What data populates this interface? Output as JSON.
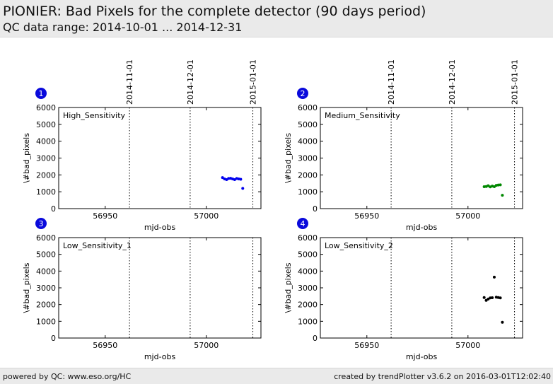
{
  "header": {
    "title": "PIONIER: Bad Pixels for the complete detector (90 days period)",
    "subtitle": "QC data range: 2014-10-01 ... 2014-12-31"
  },
  "footer": {
    "left": "powered by QC: www.eso.org/HC",
    "right": "created by trendPlotter v3.6.2 on 2016-03-01T12:02:40"
  },
  "chart_data": [
    {
      "type": "scatter",
      "badge": "1",
      "label": "High_Sensitivity",
      "xlabel": "mjd-obs",
      "ylabel": "\\#bad_pixels",
      "xlim": [
        56927,
        57027
      ],
      "ylim": [
        0,
        6000
      ],
      "xticks": [
        56950,
        57000
      ],
      "yticks": [
        0,
        1000,
        2000,
        3000,
        4000,
        5000,
        6000
      ],
      "date_markers": [
        {
          "x": 56962,
          "label": "2014-11-01"
        },
        {
          "x": 56992,
          "label": "2014-12-01"
        },
        {
          "x": 57023,
          "label": "2015-01-01"
        }
      ],
      "color": "#0000ee",
      "points": [
        {
          "x": 57008,
          "y": 1840
        },
        {
          "x": 57009,
          "y": 1760
        },
        {
          "x": 57010,
          "y": 1720
        },
        {
          "x": 57011,
          "y": 1790
        },
        {
          "x": 57012,
          "y": 1800
        },
        {
          "x": 57013,
          "y": 1760
        },
        {
          "x": 57014,
          "y": 1720
        },
        {
          "x": 57015,
          "y": 1790
        },
        {
          "x": 57016,
          "y": 1760
        },
        {
          "x": 57017,
          "y": 1740
        },
        {
          "x": 57018,
          "y": 1200
        }
      ]
    },
    {
      "type": "scatter",
      "badge": "2",
      "label": "Medium_Sensitivity",
      "xlabel": "mjd-obs",
      "ylabel": "\\#bad_pixels",
      "xlim": [
        56927,
        57027
      ],
      "ylim": [
        0,
        6000
      ],
      "xticks": [
        56950,
        57000
      ],
      "yticks": [
        0,
        1000,
        2000,
        3000,
        4000,
        5000,
        6000
      ],
      "date_markers": [
        {
          "x": 56962,
          "label": "2014-11-01"
        },
        {
          "x": 56992,
          "label": "2014-12-01"
        },
        {
          "x": 57023,
          "label": "2015-01-01"
        }
      ],
      "color": "#008800",
      "points": [
        {
          "x": 57008,
          "y": 1300
        },
        {
          "x": 57009,
          "y": 1310
        },
        {
          "x": 57010,
          "y": 1360
        },
        {
          "x": 57011,
          "y": 1290
        },
        {
          "x": 57012,
          "y": 1340
        },
        {
          "x": 57013,
          "y": 1300
        },
        {
          "x": 57014,
          "y": 1380
        },
        {
          "x": 57015,
          "y": 1400
        },
        {
          "x": 57016,
          "y": 1410
        },
        {
          "x": 57017,
          "y": 790
        }
      ]
    },
    {
      "type": "scatter",
      "badge": "3",
      "label": "Low_Sensitivity_1",
      "xlabel": "mjd-obs",
      "ylabel": "\\#bad_pixels",
      "xlim": [
        56927,
        57027
      ],
      "ylim": [
        0,
        6000
      ],
      "xticks": [
        56950,
        57000
      ],
      "yticks": [
        0,
        1000,
        2000,
        3000,
        4000,
        5000,
        6000
      ],
      "date_markers": [
        {
          "x": 56962,
          "label": ""
        },
        {
          "x": 56992,
          "label": ""
        },
        {
          "x": 57023,
          "label": ""
        }
      ],
      "color": "#000000",
      "points": []
    },
    {
      "type": "scatter",
      "badge": "4",
      "label": "Low_Sensitivity_2",
      "xlabel": "mjd-obs",
      "ylabel": "\\#bad_pixels",
      "xlim": [
        56927,
        57027
      ],
      "ylim": [
        0,
        6000
      ],
      "xticks": [
        56950,
        57000
      ],
      "yticks": [
        0,
        1000,
        2000,
        3000,
        4000,
        5000,
        6000
      ],
      "date_markers": [
        {
          "x": 56962,
          "label": ""
        },
        {
          "x": 56992,
          "label": ""
        },
        {
          "x": 57023,
          "label": ""
        }
      ],
      "color": "#000000",
      "points": [
        {
          "x": 57008,
          "y": 2420
        },
        {
          "x": 57009,
          "y": 2250
        },
        {
          "x": 57010,
          "y": 2330
        },
        {
          "x": 57011,
          "y": 2400
        },
        {
          "x": 57012,
          "y": 2410
        },
        {
          "x": 57013,
          "y": 3640
        },
        {
          "x": 57014,
          "y": 2440
        },
        {
          "x": 57015,
          "y": 2420
        },
        {
          "x": 57016,
          "y": 2400
        },
        {
          "x": 57017,
          "y": 940
        }
      ]
    }
  ]
}
